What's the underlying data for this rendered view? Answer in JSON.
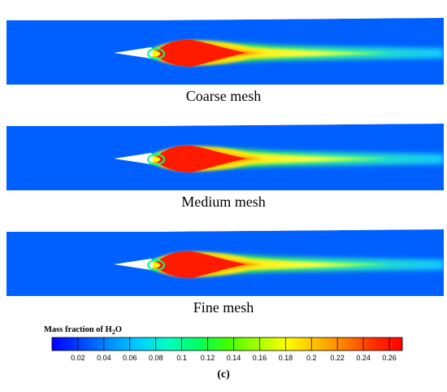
{
  "panels": [
    {
      "caption": "Coarse mesh"
    },
    {
      "caption": "Medium mesh"
    },
    {
      "caption": "Fine mesh"
    }
  ],
  "colorbar": {
    "title_prefix": "Mass fraction of H",
    "title_sub": "2",
    "title_suffix": "O",
    "min": 0.0,
    "max": 0.27,
    "ticks": [
      "0.02",
      "0.04",
      "0.06",
      "0.08",
      "0.1",
      "0.12",
      "0.14",
      "0.16",
      "0.18",
      "0.2",
      "0.22",
      "0.24",
      "0.26"
    ],
    "colors": [
      "#0000ff",
      "#0044ff",
      "#0090ff",
      "#00d0ff",
      "#00ffc0",
      "#00ff60",
      "#40ff00",
      "#a0ff00",
      "#ffff00",
      "#ffc000",
      "#ff8000",
      "#ff3000",
      "#ff0000"
    ]
  },
  "figure_label": "(c)"
}
